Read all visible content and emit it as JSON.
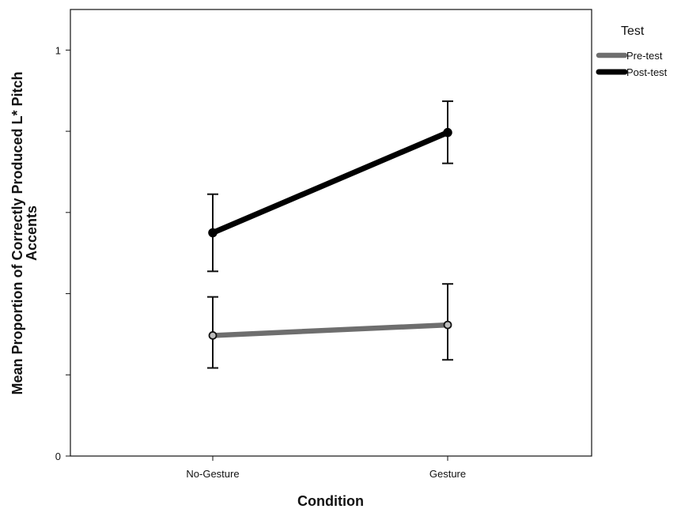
{
  "chart_data": {
    "type": "line",
    "xlabel": "Condition",
    "ylabel_line1": "Mean Proportion of Correctly Produced L* Pitch",
    "ylabel_line2": "Accents",
    "categories": [
      "No-Gesture",
      "Gesture"
    ],
    "ylim": [
      0,
      1.1
    ],
    "y_ticks": [
      {
        "value": 0,
        "label": "0"
      },
      {
        "value": 0.2,
        "label": ""
      },
      {
        "value": 0.4,
        "label": ""
      },
      {
        "value": 0.6,
        "label": ""
      },
      {
        "value": 0.8,
        "label": ""
      },
      {
        "value": 1,
        "label": "1"
      }
    ],
    "grid": false,
    "legend": {
      "title": "Test",
      "placement": "top-right"
    },
    "series": [
      {
        "name": "Pre-test",
        "color": "#6e6e6e",
        "values": [
          0.297,
          0.323
        ],
        "error_low": [
          0.217,
          0.237
        ],
        "error_high": [
          0.392,
          0.424
        ]
      },
      {
        "name": "Post-test",
        "color": "#000000",
        "values": [
          0.55,
          0.797
        ],
        "error_low": [
          0.455,
          0.721
        ],
        "error_high": [
          0.645,
          0.874
        ]
      }
    ]
  }
}
